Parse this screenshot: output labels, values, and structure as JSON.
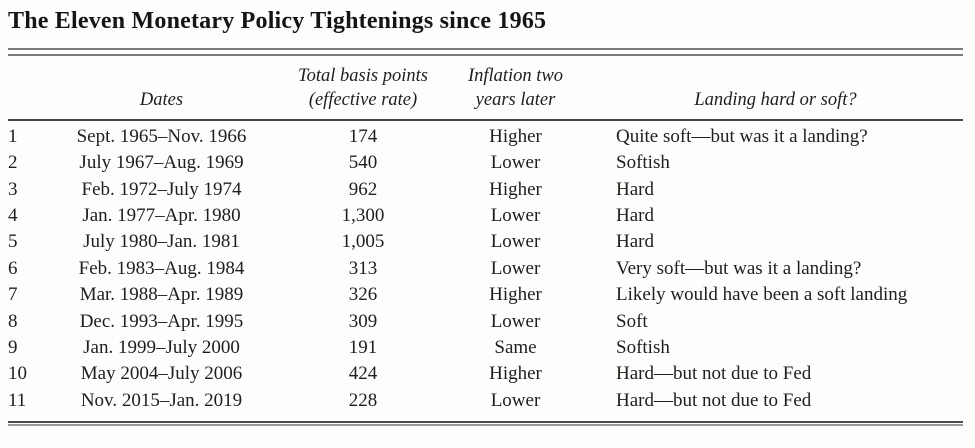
{
  "title": "The Eleven Monetary Policy Tightenings since 1965",
  "colors": {
    "text": "#1e1e1c",
    "rule_gray": "#7b7b79",
    "rule_dark": "#454543"
  },
  "table": {
    "headers": {
      "dates": "Dates",
      "basis_points_line1": "Total basis points",
      "basis_points_line2": "(effective rate)",
      "inflation_line1": "Inflation two",
      "inflation_line2": "years later",
      "landing": "Landing hard or soft?"
    },
    "rows": [
      {
        "num": "1",
        "dates": "Sept. 1965–Nov. 1966",
        "basis_points": "174",
        "inflation": "Higher",
        "landing": "Quite soft—but was it a landing?"
      },
      {
        "num": "2",
        "dates": "July 1967–Aug. 1969",
        "basis_points": "540",
        "inflation": "Lower",
        "landing": "Softish"
      },
      {
        "num": "3",
        "dates": "Feb. 1972–July 1974",
        "basis_points": "962",
        "inflation": "Higher",
        "landing": "Hard"
      },
      {
        "num": "4",
        "dates": "Jan. 1977–Apr. 1980",
        "basis_points": "1,300",
        "inflation": "Lower",
        "landing": "Hard"
      },
      {
        "num": "5",
        "dates": "July 1980–Jan. 1981",
        "basis_points": "1,005",
        "inflation": "Lower",
        "landing": "Hard"
      },
      {
        "num": "6",
        "dates": "Feb. 1983–Aug. 1984",
        "basis_points": "313",
        "inflation": "Lower",
        "landing": "Very soft—but was it a landing?"
      },
      {
        "num": "7",
        "dates": "Mar. 1988–Apr. 1989",
        "basis_points": "326",
        "inflation": "Higher",
        "landing": "Likely would have been a soft landing"
      },
      {
        "num": "8",
        "dates": "Dec. 1993–Apr. 1995",
        "basis_points": "309",
        "inflation": "Lower",
        "landing": "Soft"
      },
      {
        "num": "9",
        "dates": "Jan. 1999–July 2000",
        "basis_points": "191",
        "inflation": "Same",
        "landing": "Softish"
      },
      {
        "num": "10",
        "dates": "May 2004–July 2006",
        "basis_points": "424",
        "inflation": "Higher",
        "landing": "Hard—but not due to Fed"
      },
      {
        "num": "11",
        "dates": "Nov. 2015–Jan. 2019",
        "basis_points": "228",
        "inflation": "Lower",
        "landing": "Hard—but not due to Fed"
      }
    ]
  }
}
